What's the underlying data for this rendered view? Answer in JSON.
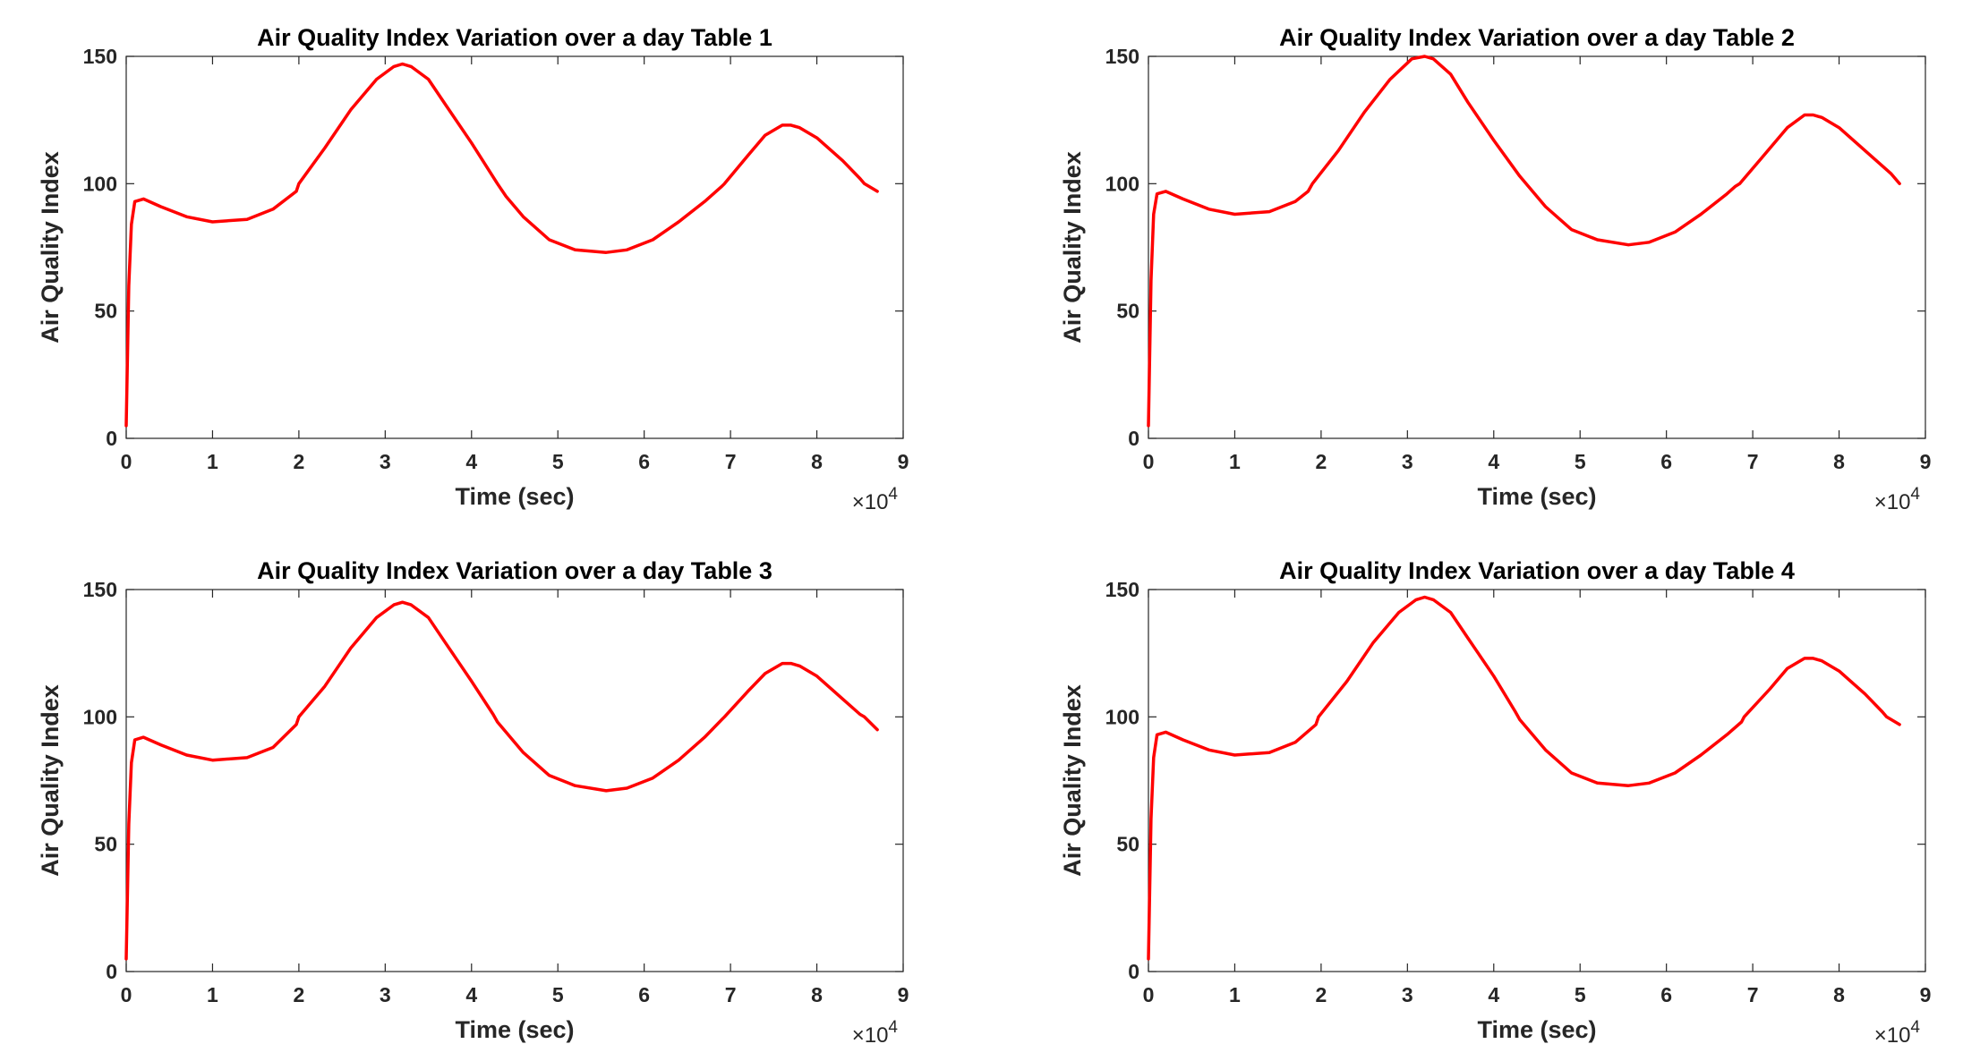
{
  "chart_data": [
    {
      "type": "line",
      "title": "Air Quality Index Variation over a day Table 1",
      "xlabel": "Time (sec)",
      "ylabel": "Air Quality Index",
      "xlim": [
        0,
        90000
      ],
      "ylim": [
        0,
        150
      ],
      "x_multiplier_label": "×10",
      "x_multiplier_exponent": "4",
      "xtick_labels": [
        "0",
        "1",
        "2",
        "3",
        "4",
        "5",
        "6",
        "7",
        "8",
        "9"
      ],
      "ytick_labels": [
        "0",
        "50",
        "100",
        "150"
      ],
      "grid": false,
      "series": [
        {
          "color": "#ff0000",
          "x": [
            0,
            300,
            600,
            1000,
            2000,
            4000,
            7000,
            10000,
            14000,
            17000,
            19700,
            20000,
            23000,
            26000,
            29000,
            31000,
            32000,
            33000,
            35000,
            37000,
            40000,
            43000,
            44000,
            46000,
            49000,
            52000,
            55600,
            58000,
            61000,
            64000,
            67000,
            69000,
            69300,
            72000,
            74000,
            76000,
            77000,
            78000,
            80000,
            83000,
            85000,
            85500,
            87000
          ],
          "y": [
            5,
            60,
            84,
            93,
            94,
            91,
            87,
            85,
            86,
            90,
            97,
            100,
            114,
            129,
            141,
            146,
            147,
            146,
            141,
            131,
            116,
            100,
            95,
            87,
            78,
            74,
            73,
            74,
            78,
            85,
            93,
            99,
            100,
            111,
            119,
            123,
            123,
            122,
            118,
            109,
            102,
            100,
            97
          ]
        },
        "horizontal"
      ]
    },
    {
      "type": "line",
      "title": "Air Quality Index Variation over a day Table 2",
      "xlabel": "Time (sec)",
      "ylabel": "Air Quality Index",
      "xlim": [
        0,
        90000
      ],
      "ylim": [
        0,
        150
      ],
      "x_multiplier_label": "×10",
      "x_multiplier_exponent": "4",
      "xtick_labels": [
        "0",
        "1",
        "2",
        "3",
        "4",
        "5",
        "6",
        "7",
        "8",
        "9"
      ],
      "ytick_labels": [
        "0",
        "50",
        "100",
        "150"
      ],
      "grid": false,
      "series": [
        {
          "color": "#ff0000",
          "x": [
            0,
            300,
            600,
            1000,
            2000,
            4000,
            7000,
            10000,
            14000,
            17000,
            18500,
            19000,
            22000,
            25000,
            28000,
            30500,
            32000,
            33000,
            35000,
            37000,
            40000,
            43000,
            44000,
            46000,
            49000,
            52000,
            55600,
            58000,
            61000,
            64000,
            67000,
            68000,
            68500,
            71000,
            74000,
            76000,
            77000,
            78000,
            80000,
            83000,
            86000,
            87000
          ],
          "y": [
            5,
            62,
            88,
            96,
            97,
            94,
            90,
            88,
            89,
            93,
            97,
            100,
            113,
            128,
            141,
            149,
            150,
            149,
            143,
            132,
            117,
            103,
            99,
            91,
            82,
            78,
            76,
            77,
            81,
            88,
            96,
            99,
            100,
            110,
            122,
            127,
            127,
            126,
            122,
            113,
            104,
            100
          ]
        }
      ]
    },
    {
      "type": "line",
      "title": "Air Quality Index Variation over a day Table 3",
      "xlabel": "Time (sec)",
      "ylabel": "Air Quality Index",
      "xlim": [
        0,
        90000
      ],
      "ylim": [
        0,
        150
      ],
      "x_multiplier_label": "×10",
      "x_multiplier_exponent": "4",
      "xtick_labels": [
        "0",
        "1",
        "2",
        "3",
        "4",
        "5",
        "6",
        "7",
        "8",
        "9"
      ],
      "ytick_labels": [
        "0",
        "50",
        "100",
        "150"
      ],
      "grid": false,
      "series": [
        {
          "color": "#ff0000",
          "x": [
            0,
            300,
            600,
            1000,
            2000,
            4000,
            7000,
            10000,
            14000,
            17000,
            19700,
            20000,
            23000,
            26000,
            29000,
            31000,
            32000,
            33000,
            35000,
            37000,
            40000,
            42500,
            43000,
            46000,
            49000,
            52000,
            55600,
            58000,
            61000,
            64000,
            67000,
            69000,
            69300,
            72000,
            74000,
            76000,
            77000,
            78000,
            80000,
            83000,
            85000,
            85500,
            87000
          ],
          "y": [
            5,
            58,
            82,
            91,
            92,
            89,
            85,
            83,
            84,
            88,
            97,
            100,
            112,
            127,
            139,
            144,
            145,
            144,
            139,
            129,
            114,
            101,
            98,
            86,
            77,
            73,
            71,
            72,
            76,
            83,
            92,
            99,
            100,
            110,
            117,
            121,
            121,
            120,
            116,
            107,
            101,
            100,
            95
          ]
        }
      ]
    },
    {
      "type": "line",
      "title": "Air Quality Index Variation over a day Table 4",
      "xlabel": "Time (sec)",
      "ylabel": "Air Quality Index",
      "xlim": [
        0,
        90000
      ],
      "ylim": [
        0,
        150
      ],
      "x_multiplier_label": "×10",
      "x_multiplier_exponent": "4",
      "xtick_labels": [
        "0",
        "1",
        "2",
        "3",
        "4",
        "5",
        "6",
        "7",
        "8",
        "9"
      ],
      "ytick_labels": [
        "0",
        "50",
        "100",
        "150"
      ],
      "grid": false,
      "series": [
        {
          "color": "#ff0000",
          "x": [
            0,
            300,
            600,
            1000,
            2000,
            4000,
            7000,
            10000,
            14000,
            17000,
            19400,
            19700,
            23000,
            26000,
            29000,
            31000,
            32000,
            33000,
            35000,
            37000,
            40000,
            42500,
            43000,
            46000,
            49000,
            52000,
            55600,
            58000,
            61000,
            64000,
            67000,
            68700,
            69000,
            72000,
            74000,
            76000,
            77000,
            78000,
            80000,
            83000,
            85000,
            85500,
            87000
          ],
          "y": [
            5,
            60,
            84,
            93,
            94,
            91,
            87,
            85,
            86,
            90,
            97,
            100,
            114,
            129,
            141,
            146,
            147,
            146,
            141,
            131,
            116,
            102,
            99,
            87,
            78,
            74,
            73,
            74,
            78,
            85,
            93,
            98,
            100,
            111,
            119,
            123,
            123,
            122,
            118,
            109,
            102,
            100,
            97
          ]
        }
      ]
    }
  ]
}
